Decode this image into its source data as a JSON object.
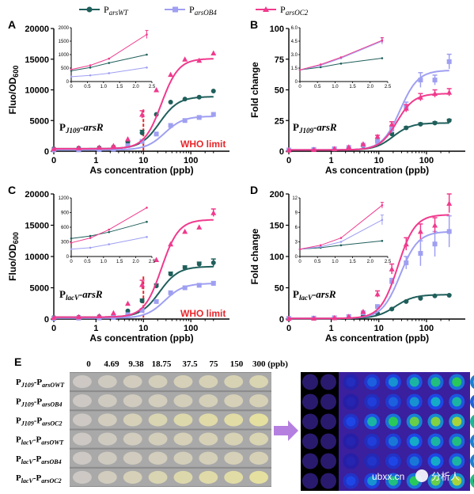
{
  "colors": {
    "wt": "#1f5f5b",
    "ob4": "#9f9ff2",
    "oc2": "#f03a8d",
    "who": "#e8262a",
    "axis": "#000000"
  },
  "legend": [
    {
      "key": "wt",
      "label_main": "P",
      "label_sub": "arsWT",
      "marker": "circle"
    },
    {
      "key": "ob4",
      "label_main": "P",
      "label_sub": "arsOB4",
      "marker": "square"
    },
    {
      "key": "oc2",
      "label_main": "P",
      "label_sub": "arsOC2",
      "marker": "triangle"
    }
  ],
  "common": {
    "x_ticks": [
      "0",
      "1",
      "10",
      "100"
    ],
    "xlabel": "As concentration (ppb)",
    "who_label": "WHO limit",
    "who_x": 10
  },
  "chart_data": [
    {
      "panel": "A",
      "type": "scatter",
      "ylabel_main": "Fluo/OD",
      "ylabel_sub": "600",
      "ylim": [
        0,
        20000
      ],
      "y_ticks": [
        0,
        5000,
        10000,
        15000,
        20000
      ],
      "construct_main": "P",
      "construct_sub": "J109",
      "construct_tail": "-arsR",
      "has_who": true,
      "x": [
        0,
        0.59,
        1.17,
        2.34,
        4.69,
        9.38,
        18.75,
        37.5,
        75,
        150,
        300
      ],
      "series": [
        {
          "key": "wt",
          "values": [
            400,
            500,
            550,
            700,
            1500,
            3000,
            6000,
            8000,
            8500,
            8800,
            9800
          ],
          "err": [
            0,
            0,
            0,
            0,
            0,
            400,
            0,
            0,
            0,
            0,
            0
          ],
          "fit": [
            400,
            8900,
            22,
            2.2
          ]
        },
        {
          "key": "ob4",
          "values": [
            200,
            220,
            260,
            330,
            900,
            1600,
            2800,
            4200,
            5000,
            5500,
            6000
          ],
          "err": [
            0,
            0,
            0,
            0,
            0,
            0,
            0,
            0,
            0,
            0,
            0
          ],
          "fit": [
            200,
            5700,
            28,
            2.2
          ]
        },
        {
          "key": "oc2",
          "values": [
            400,
            550,
            650,
            900,
            2000,
            6000,
            10000,
            12500,
            15000,
            14800,
            16000
          ],
          "err": [
            0,
            0,
            0,
            0,
            0,
            600,
            0,
            0,
            0,
            0,
            0
          ],
          "fit": [
            400,
            15100,
            24,
            2.4
          ]
        }
      ],
      "inset": {
        "xlim": [
          0,
          2.5
        ],
        "x_ticks": [
          "0",
          "0.5",
          "1.0",
          "1.5",
          "2.0",
          "2.5"
        ],
        "ylim": [
          0,
          2000
        ],
        "y_ticks": [
          "0",
          "500",
          "1000",
          "1500",
          "2000"
        ],
        "series": [
          {
            "key": "wt",
            "x": [
              0,
              0.59,
              1.17,
              2.34
            ],
            "values": [
              400,
              520,
              690,
              1000
            ],
            "err": 0
          },
          {
            "key": "ob4",
            "x": [
              0,
              0.59,
              1.17,
              2.34
            ],
            "values": [
              180,
              230,
              310,
              520
            ],
            "err": 0
          },
          {
            "key": "oc2",
            "x": [
              0,
              0.59,
              1.17,
              2.34
            ],
            "values": [
              450,
              600,
              850,
              1750
            ],
            "err": 150
          }
        ]
      }
    },
    {
      "panel": "B",
      "type": "scatter",
      "ylabel_main": "Fold change",
      "ylabel_sub": "",
      "ylim": [
        0,
        100
      ],
      "y_ticks": [
        0,
        25,
        50,
        75,
        100
      ],
      "construct_main": "P",
      "construct_sub": "J109",
      "construct_tail": "-arsR",
      "has_who": false,
      "x": [
        0,
        0.59,
        1.17,
        2.34,
        4.69,
        9.38,
        18.75,
        37.5,
        75,
        150,
        300
      ],
      "series": [
        {
          "key": "wt",
          "values": [
            1,
            1.3,
            1.7,
            2.5,
            4.5,
            8.5,
            14,
            19,
            22,
            23,
            25
          ],
          "err": [
            0,
            0,
            0,
            0,
            0,
            0.5,
            1,
            1,
            1,
            1,
            1
          ],
          "fit": [
            1,
            23,
            20,
            2.3
          ]
        },
        {
          "key": "ob4",
          "values": [
            1,
            1.4,
            2,
            3,
            5,
            8,
            18,
            36,
            58,
            58,
            73
          ],
          "err": [
            0,
            0,
            0,
            0,
            0,
            1,
            3,
            4,
            6,
            4,
            6
          ],
          "fit": [
            1,
            66,
            28,
            2.3
          ]
        },
        {
          "key": "oc2",
          "values": [
            1,
            1.4,
            2,
            3.5,
            6,
            12,
            22,
            35,
            44,
            47,
            48
          ],
          "err": [
            0,
            0,
            0,
            0,
            0,
            1,
            2,
            3,
            3,
            3,
            3
          ],
          "fit": [
            1,
            47,
            24,
            2.4
          ]
        }
      ],
      "inset": {
        "xlim": [
          0,
          2.5
        ],
        "x_ticks": [
          "0",
          "0.5",
          "1.0",
          "1.5",
          "2.0",
          "2.5"
        ],
        "ylim": [
          0,
          6
        ],
        "y_ticks": [
          "0",
          "1.5",
          "3.0",
          "4.5",
          "6.0"
        ],
        "series": [
          {
            "key": "wt",
            "x": [
              0,
              0.59,
              1.17,
              2.34
            ],
            "values": [
              1.3,
              1.6,
              2.0,
              2.6
            ],
            "err": 0
          },
          {
            "key": "ob4",
            "x": [
              0,
              0.59,
              1.17,
              2.34
            ],
            "values": [
              1.3,
              1.8,
              2.6,
              4.5
            ],
            "err": 0.35
          },
          {
            "key": "oc2",
            "x": [
              0,
              0.59,
              1.17,
              2.34
            ],
            "values": [
              1.3,
              1.9,
              2.7,
              4.6
            ],
            "err": 0.3
          }
        ]
      }
    },
    {
      "panel": "C",
      "type": "scatter",
      "ylabel_main": "Fluo/OD",
      "ylabel_sub": "600",
      "ylim": [
        0,
        20000
      ],
      "y_ticks": [
        0,
        5000,
        10000,
        15000,
        20000
      ],
      "construct_main": "P",
      "construct_sub": "lacV",
      "construct_tail": "-arsR",
      "has_who": true,
      "x": [
        0,
        0.59,
        1.17,
        2.34,
        4.69,
        9.38,
        18.75,
        37.5,
        75,
        150,
        300
      ],
      "series": [
        {
          "key": "wt",
          "values": [
            250,
            300,
            400,
            600,
            1300,
            2900,
            5300,
            7200,
            8200,
            8800,
            9000
          ],
          "err": [
            0,
            0,
            0,
            0,
            0,
            300,
            300,
            300,
            300,
            300,
            600
          ],
          "fit": [
            300,
            8400,
            22,
            2.2
          ]
        },
        {
          "key": "ob4",
          "values": [
            100,
            150,
            180,
            250,
            700,
            1400,
            2800,
            4200,
            5000,
            5400,
            5700
          ],
          "err": [
            0,
            0,
            0,
            0,
            0,
            0,
            0,
            0,
            0,
            0,
            300
          ],
          "fit": [
            150,
            5700,
            28,
            2.2
          ]
        },
        {
          "key": "oc2",
          "values": [
            250,
            350,
            500,
            1000,
            2500,
            5500,
            9500,
            12000,
            14000,
            14700,
            17000
          ],
          "err": [
            0,
            0,
            0,
            0,
            0,
            700,
            0,
            0,
            0,
            0,
            600
          ],
          "fit": [
            300,
            15900,
            24,
            2.4
          ]
        }
      ],
      "inset": {
        "xlim": [
          0,
          2.5
        ],
        "x_ticks": [
          "0",
          "0.5",
          "1.0",
          "1.5",
          "2.0",
          "2.5"
        ],
        "ylim": [
          0,
          1200
        ],
        "y_ticks": [
          "0",
          "300",
          "600",
          "900",
          "1200"
        ],
        "series": [
          {
            "key": "wt",
            "x": [
              0,
              0.59,
              1.17,
              2.34
            ],
            "values": [
              370,
              420,
              500,
              710
            ],
            "err": 0
          },
          {
            "key": "ob4",
            "x": [
              0,
              0.59,
              1.17,
              2.34
            ],
            "values": [
              150,
              180,
              250,
              400
            ],
            "err": 0
          },
          {
            "key": "oc2",
            "x": [
              0,
              0.59,
              1.17,
              2.34
            ],
            "values": [
              280,
              380,
              550,
              1000
            ],
            "err": 0
          }
        ]
      }
    },
    {
      "panel": "D",
      "type": "scatter",
      "ylabel_main": "Fold change",
      "ylabel_sub": "",
      "ylim": [
        0,
        200
      ],
      "y_ticks": [
        0,
        50,
        100,
        150,
        200
      ],
      "construct_main": "P",
      "construct_sub": "lacV",
      "construct_tail": "-arsR",
      "has_who": false,
      "x": [
        0,
        0.59,
        1.17,
        2.34,
        4.69,
        9.38,
        18.75,
        37.5,
        75,
        150,
        300
      ],
      "series": [
        {
          "key": "wt",
          "values": [
            1,
            1.3,
            1.7,
            2.6,
            5,
            9,
            16,
            28,
            33,
            37,
            38
          ],
          "err": [
            0,
            0,
            0,
            0,
            0,
            0.5,
            1,
            1,
            1,
            1,
            1
          ],
          "fit": [
            1,
            39,
            22,
            2.2
          ]
        },
        {
          "key": "ob4",
          "values": [
            1,
            1.4,
            2,
            4,
            10,
            20,
            60,
            90,
            105,
            120,
            140
          ],
          "err": [
            0,
            0,
            0,
            0,
            0,
            2,
            5,
            10,
            20,
            20,
            25
          ],
          "fit": [
            1,
            140,
            28,
            2.3
          ]
        },
        {
          "key": "oc2",
          "values": [
            1,
            1.4,
            2,
            4,
            12,
            40,
            80,
            120,
            140,
            150,
            185
          ],
          "err": [
            0,
            0,
            0,
            0,
            0,
            5,
            8,
            10,
            12,
            12,
            15
          ],
          "fit": [
            1,
            167,
            25,
            2.4
          ]
        }
      ],
      "inset": {
        "xlim": [
          0,
          2.5
        ],
        "x_ticks": [
          "0",
          "0.5",
          "1.0",
          "1.5",
          "2.0",
          "2.5"
        ],
        "ylim": [
          0,
          12
        ],
        "y_ticks": [
          "0",
          "3",
          "6",
          "9",
          "12"
        ],
        "series": [
          {
            "key": "wt",
            "x": [
              0,
              0.59,
              1.17,
              2.34
            ],
            "values": [
              1.5,
              1.8,
              2.3,
              3.2
            ],
            "err": 0
          },
          {
            "key": "ob4",
            "x": [
              0,
              0.59,
              1.17,
              2.34
            ],
            "values": [
              1.5,
              2.0,
              3.0,
              7.5
            ],
            "err": 1
          },
          {
            "key": "oc2",
            "x": [
              0,
              0.59,
              1.17,
              2.34
            ],
            "values": [
              1.5,
              2.3,
              3.8,
              10.5
            ],
            "err": 0.6
          }
        ]
      }
    }
  ],
  "panel_e": {
    "label": "E",
    "concentrations": [
      "0",
      "4.69",
      "9.38",
      "18.75",
      "37.5",
      "75",
      "150",
      "300 (ppb)"
    ],
    "rows": [
      {
        "main": "P",
        "sub": "J109",
        "tail_main": "-P",
        "tail_sub": "arsOWT",
        "photo": [
          0,
          0.05,
          0.1,
          0.15,
          0.2,
          0.22,
          0.25,
          0.3
        ],
        "heat": [
          0.05,
          0.15,
          0.35,
          0.45,
          0.55,
          0.6,
          0.65,
          0.7
        ]
      },
      {
        "main": "P",
        "sub": "J109",
        "tail_main": "-P",
        "tail_sub": "arsOB4",
        "photo": [
          0,
          0.05,
          0.08,
          0.12,
          0.15,
          0.18,
          0.2,
          0.22
        ],
        "heat": [
          0.05,
          0.1,
          0.25,
          0.35,
          0.45,
          0.5,
          0.55,
          0.6
        ]
      },
      {
        "main": "P",
        "sub": "J109",
        "tail_main": "-P",
        "tail_sub": "arsOC2",
        "photo": [
          0,
          0.1,
          0.2,
          0.3,
          0.4,
          0.45,
          0.5,
          0.6
        ],
        "heat": [
          0.1,
          0.3,
          0.55,
          0.65,
          0.7,
          0.72,
          0.75,
          0.95
        ]
      },
      {
        "main": "P",
        "sub": "lacV",
        "tail_main": "-P",
        "tail_sub": "arsOWT",
        "photo": [
          0,
          0.05,
          0.1,
          0.15,
          0.2,
          0.22,
          0.25,
          0.3
        ],
        "heat": [
          0.05,
          0.1,
          0.25,
          0.4,
          0.5,
          0.55,
          0.6,
          0.7
        ]
      },
      {
        "main": "P",
        "sub": "lacV",
        "tail_main": "-P",
        "tail_sub": "arsOB4",
        "photo": [
          0,
          0.05,
          0.08,
          0.12,
          0.15,
          0.18,
          0.2,
          0.22
        ],
        "heat": [
          0.05,
          0.1,
          0.2,
          0.3,
          0.4,
          0.5,
          0.55,
          0.7
        ]
      },
      {
        "main": "P",
        "sub": "lacV",
        "tail_main": "-P",
        "tail_sub": "arsOC2",
        "photo": [
          0,
          0.1,
          0.2,
          0.3,
          0.4,
          0.45,
          0.5,
          0.6
        ],
        "heat": [
          0.1,
          0.3,
          0.45,
          0.6,
          0.65,
          0.7,
          0.75,
          1.0
        ]
      }
    ],
    "watermark_url": "ubxx.cn",
    "watermark_brand": "分析人"
  }
}
